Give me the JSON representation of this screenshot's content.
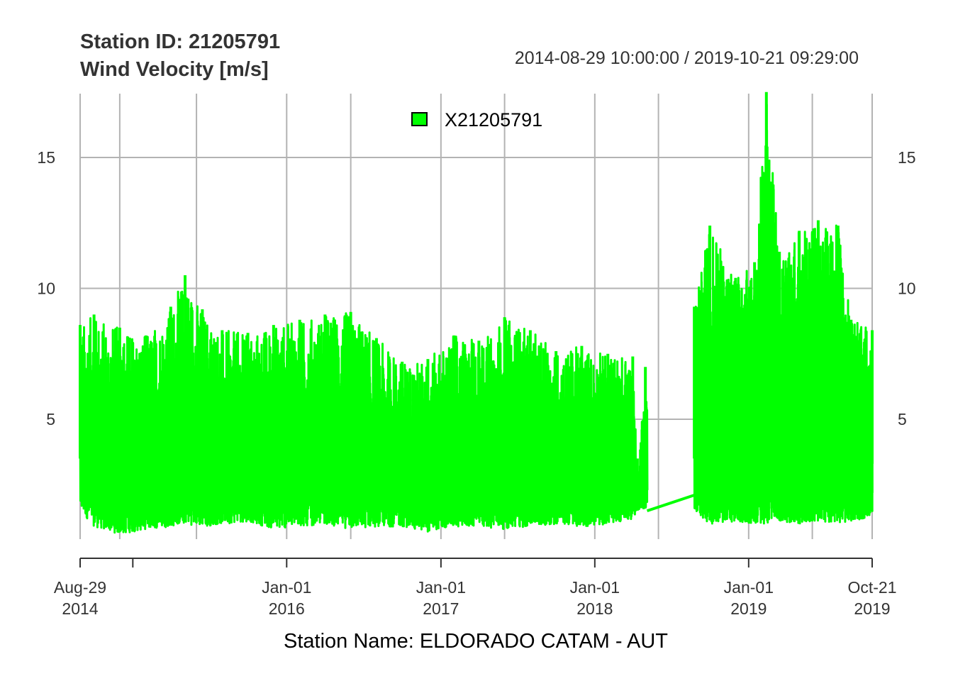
{
  "chart_data": {
    "type": "line",
    "title": "Station ID: 21205791",
    "subtitle": "Wind Velocity [m/s]",
    "period_label": "2014-08-29 10:00:00 / 2019-10-21 09:29:00",
    "xlabel": "Station Name: ELDORADO CATAM - AUT",
    "ylabel": "",
    "x_range": [
      "2014-08-29",
      "2019-10-21"
    ],
    "ylim": [
      0,
      17.5
    ],
    "y_ticks": [
      5,
      10,
      15
    ],
    "grid": true,
    "legend": {
      "position": "top-center",
      "entries": [
        "X21205791"
      ]
    },
    "x_major_ticks": [
      {
        "date": "2014-08-29",
        "month": "Aug-29",
        "year": "2014"
      },
      {
        "date": "2016-01-01",
        "month": "Jan-01",
        "year": "2016"
      },
      {
        "date": "2017-01-01",
        "month": "Jan-01",
        "year": "2017"
      },
      {
        "date": "2018-01-01",
        "month": "Jan-01",
        "year": "2018"
      },
      {
        "date": "2019-01-01",
        "month": "Jan-01",
        "year": "2019"
      },
      {
        "date": "2019-10-21",
        "month": "Oct-21",
        "year": "2019"
      }
    ],
    "x_minor_ticks": [
      "2015-01-01"
    ],
    "gap": {
      "start": "2018-05-05",
      "end": "2018-08-25",
      "value_start": 1.5,
      "value_end": 2.1
    },
    "series": [
      {
        "name": "X21205791",
        "color": "#00ff00",
        "envelope": [
          {
            "date": "2014-08-29",
            "min": 1.5,
            "max": 8.6
          },
          {
            "date": "2014-10-01",
            "min": 0.9,
            "max": 9.0
          },
          {
            "date": "2014-12-01",
            "min": 0.6,
            "max": 8.5
          },
          {
            "date": "2015-02-01",
            "min": 0.8,
            "max": 8.2
          },
          {
            "date": "2015-04-01",
            "min": 0.9,
            "max": 9.3
          },
          {
            "date": "2015-05-05",
            "min": 1.0,
            "max": 10.5
          },
          {
            "date": "2015-06-15",
            "min": 0.9,
            "max": 9.2
          },
          {
            "date": "2015-08-01",
            "min": 1.0,
            "max": 8.4
          },
          {
            "date": "2015-10-01",
            "min": 1.1,
            "max": 8.3
          },
          {
            "date": "2015-12-01",
            "min": 0.8,
            "max": 8.6
          },
          {
            "date": "2016-02-01",
            "min": 0.9,
            "max": 8.8
          },
          {
            "date": "2016-04-01",
            "min": 1.0,
            "max": 9.0
          },
          {
            "date": "2016-06-01",
            "min": 0.8,
            "max": 9.1
          },
          {
            "date": "2016-08-01",
            "min": 0.9,
            "max": 8.1
          },
          {
            "date": "2016-10-01",
            "min": 0.9,
            "max": 7.2
          },
          {
            "date": "2016-12-01",
            "min": 0.7,
            "max": 7.3
          },
          {
            "date": "2017-02-01",
            "min": 0.9,
            "max": 8.2
          },
          {
            "date": "2017-04-01",
            "min": 0.9,
            "max": 8.0
          },
          {
            "date": "2017-06-01",
            "min": 0.8,
            "max": 8.9
          },
          {
            "date": "2017-08-01",
            "min": 0.9,
            "max": 8.4
          },
          {
            "date": "2017-10-01",
            "min": 1.0,
            "max": 7.6
          },
          {
            "date": "2017-12-01",
            "min": 0.9,
            "max": 7.8
          },
          {
            "date": "2018-02-01",
            "min": 1.0,
            "max": 7.5
          },
          {
            "date": "2018-04-01",
            "min": 1.2,
            "max": 7.4
          },
          {
            "date": "2018-04-12",
            "min": 1.5,
            "max": 2.8
          },
          {
            "date": "2018-05-01",
            "min": 1.6,
            "max": 7.0
          },
          {
            "date": "2018-08-25",
            "min": 1.5,
            "max": 9.3
          },
          {
            "date": "2018-10-01",
            "min": 1.0,
            "max": 12.4
          },
          {
            "date": "2018-12-01",
            "min": 1.1,
            "max": 10.4
          },
          {
            "date": "2019-01-15",
            "min": 1.0,
            "max": 11.0
          },
          {
            "date": "2019-02-12",
            "min": 1.0,
            "max": 17.5
          },
          {
            "date": "2019-03-15",
            "min": 1.1,
            "max": 11.4
          },
          {
            "date": "2019-05-01",
            "min": 1.0,
            "max": 12.2
          },
          {
            "date": "2019-06-15",
            "min": 1.1,
            "max": 12.6
          },
          {
            "date": "2019-08-01",
            "min": 1.0,
            "max": 12.4
          },
          {
            "date": "2019-09-01",
            "min": 1.1,
            "max": 8.8
          },
          {
            "date": "2019-10-21",
            "min": 1.3,
            "max": 8.4
          }
        ]
      }
    ]
  }
}
